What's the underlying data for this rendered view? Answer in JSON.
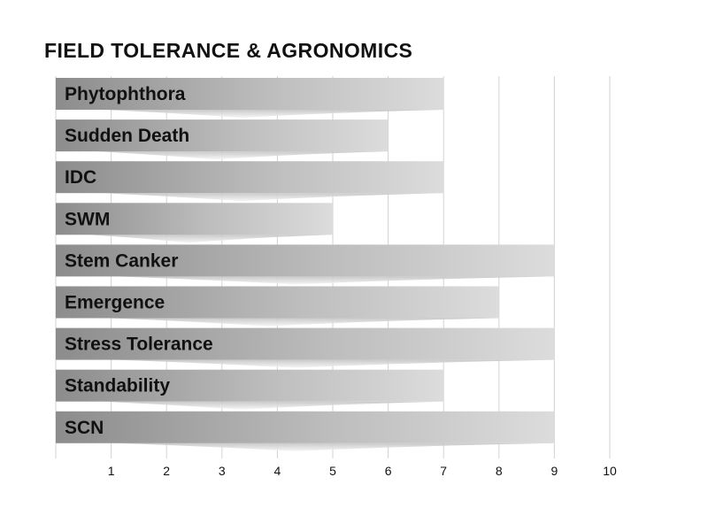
{
  "chart_data": {
    "type": "bar",
    "orientation": "horizontal",
    "title": "FIELD TOLERANCE & AGRONOMICS",
    "xlabel": "",
    "ylabel": "",
    "xlim": [
      0,
      10
    ],
    "grid": true,
    "legend": "none",
    "ticks": [
      "1",
      "2",
      "3",
      "4",
      "5",
      "6",
      "7",
      "8",
      "9",
      "10"
    ],
    "categories": [
      "Phytophthora",
      "Sudden Death",
      "IDC",
      "SWM",
      "Stem Canker",
      "Emergence",
      "Stress Tolerance",
      "Standability",
      "SCN"
    ],
    "values": [
      7,
      6,
      7,
      5,
      9,
      8,
      9,
      7,
      9
    ]
  }
}
